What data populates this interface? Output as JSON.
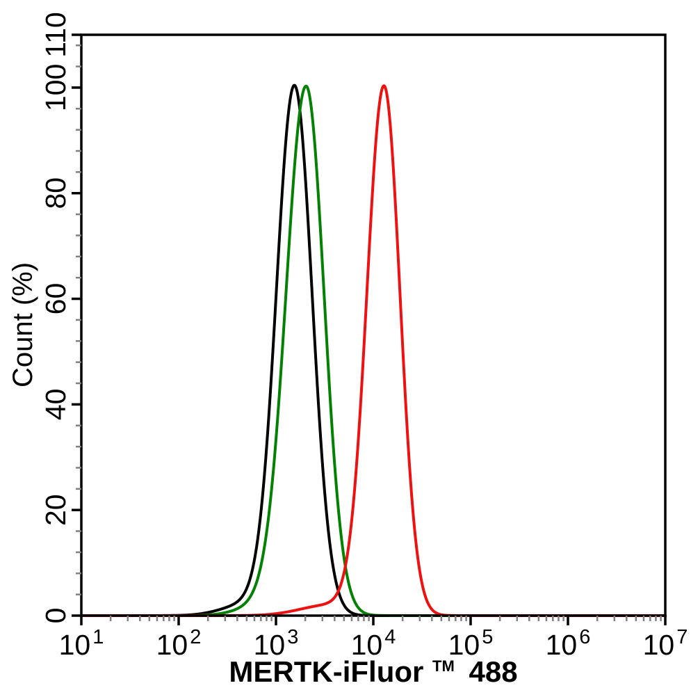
{
  "chart_data": {
    "type": "line",
    "subtype": "flow-cytometry-histogram-overlay",
    "title": "",
    "xlabel": "MERTK-iFluor™ 488",
    "xlabel_parts": {
      "main": "MERTK-iFluor",
      "sup": "TM",
      "suffix": "488"
    },
    "ylabel": "Count (%)",
    "x_scale": "log10",
    "xlim": [
      10,
      10000000
    ],
    "ylim": [
      0,
      110
    ],
    "x_major_tick_exponents": [
      1,
      2,
      3,
      4,
      5,
      6,
      7
    ],
    "x_minor_tick_multiples": [
      2,
      3,
      4,
      5,
      6,
      7,
      8,
      9
    ],
    "y_major_ticks": [
      0,
      20,
      40,
      60,
      80,
      100,
      110
    ],
    "y_minor_step": 4,
    "grid": "off",
    "legend": "none",
    "axis_color": "#000000",
    "minor_tick_color": "#808080",
    "background_color": "#ffffff",
    "series": [
      {
        "name": "black-curve",
        "color": "#000000",
        "peak_x": 1550,
        "peak_y": 100,
        "log_mean": 3.19,
        "sigma_left": 0.185,
        "sigma_right": 0.182,
        "tail": {
          "amp": 2.2,
          "mu": 2.72,
          "sigma": 0.26
        },
        "key_points": [
          [
            300,
            2
          ],
          [
            500,
            4
          ],
          [
            800,
            33
          ],
          [
            1000,
            62
          ],
          [
            1550,
            100
          ],
          [
            2000,
            84
          ],
          [
            3000,
            30
          ],
          [
            5000,
            2
          ]
        ]
      },
      {
        "name": "green-curve",
        "color": "#038103",
        "peak_x": 2040,
        "peak_y": 100,
        "log_mean": 3.31,
        "sigma_left": 0.205,
        "sigma_right": 0.185,
        "tail": {
          "amp": 1.8,
          "mu": 2.85,
          "sigma": 0.24
        },
        "key_points": [
          [
            400,
            2
          ],
          [
            700,
            7
          ],
          [
            1000,
            30
          ],
          [
            1500,
            80
          ],
          [
            2040,
            100
          ],
          [
            3000,
            68
          ],
          [
            5000,
            12
          ],
          [
            7000,
            2
          ]
        ]
      },
      {
        "name": "red-curve",
        "color": "#ee1111",
        "peak_x": 12900,
        "peak_y": 100,
        "log_mean": 4.11,
        "sigma_left": 0.175,
        "sigma_right": 0.165,
        "tail": {
          "amp": 2.0,
          "mu": 3.55,
          "sigma": 0.3
        },
        "key_points": [
          [
            2000,
            1
          ],
          [
            3000,
            2
          ],
          [
            5000,
            5
          ],
          [
            8000,
            45
          ],
          [
            12900,
            100
          ],
          [
            20000,
            55
          ],
          [
            30000,
            11
          ],
          [
            50000,
            1
          ]
        ]
      }
    ]
  }
}
